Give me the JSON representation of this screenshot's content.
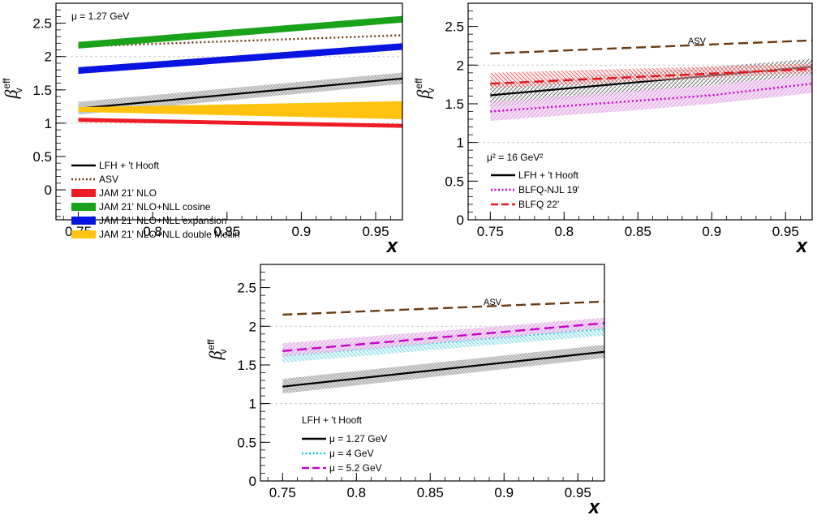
{
  "chart_data": [
    {
      "type": "line",
      "xlabel": "x",
      "ylabel": "β",
      "ylabel_sup": "eff",
      "ylabel_sub": "v",
      "xlim": [
        0.735,
        0.968
      ],
      "ylim": [
        -0.45,
        2.8
      ],
      "xticks": [
        "0.75",
        "0.8",
        "0.85",
        "0.9",
        "0.95"
      ],
      "yticks": [
        "0",
        "0.5",
        "1",
        "1.5",
        "2",
        "2.5"
      ],
      "annotation": "μ = 1.27 GeV",
      "legend_position": "bottom-left",
      "series": [
        {
          "name": "LFH + 't Hooft",
          "style": "solid",
          "color": "#000000",
          "band": "grey-hatch",
          "x": [
            0.75,
            0.968
          ],
          "y": [
            1.22,
            1.67
          ],
          "band_lo": [
            1.13,
            1.59
          ],
          "band_hi": [
            1.32,
            1.76
          ]
        },
        {
          "name": "ASV",
          "style": "dotted",
          "color": "#6b3a10",
          "x": [
            0.75,
            0.968
          ],
          "y": [
            2.15,
            2.32
          ]
        },
        {
          "name": "JAM 21' NLO",
          "style": "band",
          "color": "#ee1c25",
          "x": [
            0.75,
            0.968
          ],
          "band_lo": [
            1.02,
            0.93
          ],
          "band_hi": [
            1.08,
            0.99
          ]
        },
        {
          "name": "JAM 21' NLO+NLL cosine",
          "style": "band",
          "color": "#1aa31a",
          "x": [
            0.75,
            0.968
          ],
          "band_lo": [
            2.12,
            2.51
          ],
          "band_hi": [
            2.22,
            2.61
          ]
        },
        {
          "name": "JAM 21' NLO+NLL expansion",
          "style": "band",
          "color": "#0a14e0",
          "x": [
            0.75,
            0.968
          ],
          "band_lo": [
            1.74,
            2.1
          ],
          "band_hi": [
            1.84,
            2.2
          ]
        },
        {
          "name": "JAM 21' NLO+NLL double Mellin",
          "style": "band",
          "color": "#ffc20e",
          "x": [
            0.75,
            0.968
          ],
          "band_lo": [
            1.17,
            1.06
          ],
          "band_hi": [
            1.24,
            1.33
          ]
        }
      ]
    },
    {
      "type": "line",
      "xlabel": "x",
      "ylabel": "β",
      "ylabel_sup": "eff",
      "ylabel_sub": "v",
      "xlim": [
        0.735,
        0.968
      ],
      "ylim": [
        0,
        2.8
      ],
      "xticks": [
        "0.75",
        "0.8",
        "0.85",
        "0.9",
        "0.95"
      ],
      "yticks": [
        "0",
        "0.5",
        "1",
        "1.5",
        "2",
        "2.5"
      ],
      "annotation": "μ² = 16 GeV²",
      "curve_label": "ASV",
      "legend_position": "bottom-left",
      "series": [
        {
          "name": "",
          "style": "dashed",
          "color": "#6b3a10",
          "x": [
            0.75,
            0.968
          ],
          "y": [
            2.15,
            2.32
          ]
        },
        {
          "name": "LFH + 't Hooft",
          "style": "solid",
          "color": "#000000",
          "band": "black-hatch",
          "x": [
            0.75,
            0.968
          ],
          "y": [
            1.61,
            1.98
          ],
          "band_lo": [
            1.46,
            1.87
          ],
          "band_hi": [
            1.75,
            2.08
          ]
        },
        {
          "name": "BLFQ-NJL 19'",
          "style": "dotted",
          "color": "#cc00cc",
          "band": "violet-hatch",
          "x": [
            0.75,
            0.8,
            0.85,
            0.9,
            0.968
          ],
          "y": [
            1.4,
            1.47,
            1.54,
            1.61,
            1.76
          ],
          "band_lo": [
            1.28,
            1.35,
            1.42,
            1.5,
            1.64
          ],
          "band_hi": [
            1.52,
            1.6,
            1.67,
            1.74,
            1.88
          ]
        },
        {
          "name": "BLFQ 22'",
          "style": "dashed",
          "color": "#e8141c",
          "band": "red-hatch",
          "x": [
            0.75,
            0.968
          ],
          "y": [
            1.76,
            1.95
          ],
          "band_lo": [
            1.7,
            1.9
          ],
          "band_hi": [
            1.9,
            2.02
          ]
        }
      ]
    },
    {
      "type": "line",
      "xlabel": "x",
      "ylabel": "β",
      "ylabel_sup": "eff",
      "ylabel_sub": "v",
      "xlim": [
        0.735,
        0.968
      ],
      "ylim": [
        0,
        2.8
      ],
      "xticks": [
        "0.75",
        "0.8",
        "0.85",
        "0.9",
        "0.95"
      ],
      "yticks": [
        "0",
        "0.5",
        "1",
        "1.5",
        "2",
        "2.5"
      ],
      "curve_label": "ASV",
      "legend_title": "LFH + 't Hooft",
      "legend_position": "bottom-left",
      "series": [
        {
          "name": "",
          "style": "dashed",
          "color": "#6b3a10",
          "x": [
            0.75,
            0.968
          ],
          "y": [
            2.15,
            2.32
          ]
        },
        {
          "name": "μ = 1.27 GeV",
          "style": "solid",
          "color": "#000000",
          "band": "grey-hatch",
          "x": [
            0.75,
            0.968
          ],
          "y": [
            1.22,
            1.67
          ],
          "band_lo": [
            1.13,
            1.59
          ],
          "band_hi": [
            1.32,
            1.76
          ]
        },
        {
          "name": "μ = 4 GeV",
          "style": "dotted",
          "color": "#00c8d8",
          "band": "cyan-hatch",
          "x": [
            0.75,
            0.968
          ],
          "y": [
            1.62,
            1.97
          ],
          "band_lo": [
            1.53,
            1.88
          ],
          "band_hi": [
            1.72,
            2.06
          ]
        },
        {
          "name": "μ = 5.2 GeV",
          "style": "dashed",
          "color": "#cc00cc",
          "band": "violet-hatch",
          "x": [
            0.75,
            0.968
          ],
          "y": [
            1.68,
            2.04
          ],
          "band_lo": [
            1.61,
            1.97
          ],
          "band_hi": [
            1.78,
            2.11
          ]
        }
      ]
    }
  ]
}
